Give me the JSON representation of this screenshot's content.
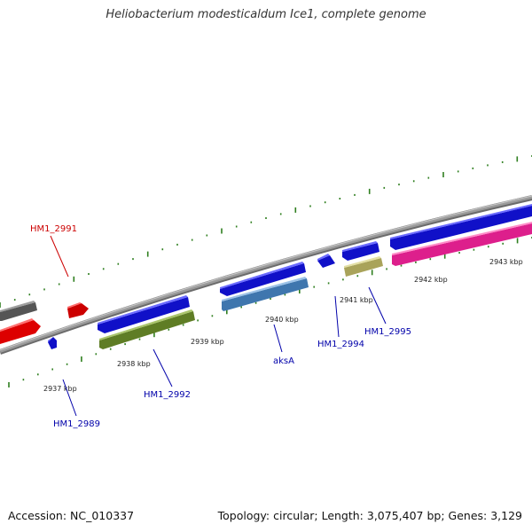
{
  "title": "Heliobacterium modesticaldum Ice1, complete genome",
  "footer": {
    "accession": "Accession: NC_010337",
    "summary": "Topology: circular; Length: 3,075,407 bp; Genes: 3,129"
  },
  "scale_labels": [
    "2937 kbp",
    "2938 kbp",
    "2939 kbp",
    "2940 kbp",
    "2941 kbp",
    "2942 kbp",
    "2943 kbp"
  ],
  "gene_labels": [
    "HM1_2991",
    "HM1_2989",
    "HM1_2992",
    "aksA",
    "HM1_2994",
    "HM1_2995"
  ],
  "colors": {
    "label_red": "#cc0000",
    "label_blue": "#0000aa",
    "tick_green": "#2f7f1f",
    "backbone_gray": "#8c8c8c",
    "gene_blue": "#1414e6",
    "gene_red": "#ee1111",
    "gene_gray": "#6e6e6e",
    "gene_olive": "#6f8f2a",
    "gene_steel": "#4f86bf",
    "gene_khaki": "#bdb76b",
    "gene_pink": "#ee2a9a"
  }
}
